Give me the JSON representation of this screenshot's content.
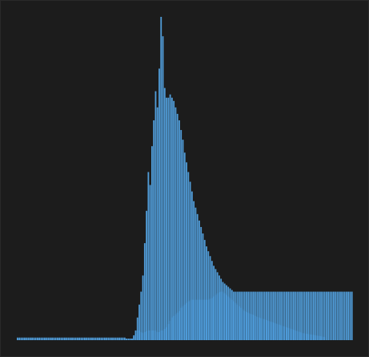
{
  "chart_data": {
    "type": "bar",
    "title": "",
    "xlabel": "",
    "ylabel": "",
    "grid": false,
    "legend": "none",
    "ylim": [
      0,
      100
    ],
    "colors": {
      "background": "#1c1c1c",
      "front": "#55a7e8",
      "back": "#2f6296"
    },
    "series": [
      {
        "values": [
          0.8,
          0.8,
          0.8,
          0.8,
          0.8,
          0.8,
          0.8,
          0.8,
          0.8,
          0.8,
          0.8,
          0.8,
          0.8,
          0.8,
          0.8,
          0.8,
          0.8,
          0.8,
          0.8,
          0.8,
          0.8,
          0.8,
          0.8,
          0.8,
          0.8,
          0.8,
          0.8,
          0.8,
          0.8,
          0.8,
          0.8,
          0.8,
          0.8,
          0.8,
          0.8,
          0.8,
          0.8,
          0.8,
          0.8,
          0.8,
          0.8,
          0.8,
          0.8,
          0.8,
          0.8,
          0.8,
          0.8,
          0.8,
          0.8,
          0.8,
          0.8,
          0.8,
          0.8,
          0.8,
          0.8,
          0.8,
          0.8,
          0.8,
          0.8,
          0.8,
          0.5,
          0.5,
          0.5,
          0.5,
          1.5,
          3,
          7,
          11,
          15,
          20,
          30,
          40,
          52,
          48,
          60,
          68,
          77,
          72,
          84,
          100,
          94,
          78,
          75,
          75,
          76,
          75,
          74,
          72,
          70,
          68,
          65,
          62,
          58,
          55,
          52,
          49,
          46,
          43,
          41,
          39,
          37,
          35,
          33,
          31,
          29,
          27.5,
          26,
          24.5,
          23,
          22,
          21,
          20,
          19,
          18,
          17.5,
          17,
          16.5,
          16,
          15.5,
          15,
          15,
          15,
          15,
          15,
          15,
          15,
          15,
          15,
          15,
          15,
          15,
          15,
          15,
          15,
          15,
          15,
          15,
          15,
          15,
          15,
          15,
          15,
          15,
          15,
          15,
          15,
          15,
          15,
          15,
          15,
          15,
          15,
          15,
          15,
          15,
          15,
          15,
          15,
          15,
          15,
          15,
          15,
          15,
          15,
          15,
          15,
          15,
          15,
          15,
          15,
          15,
          15,
          15,
          15,
          15,
          15,
          15,
          15,
          15,
          15,
          15,
          15,
          15,
          15,
          15
        ]
      },
      {
        "values": [
          0.3,
          0.3,
          0.3,
          0.3,
          0.3,
          0.3,
          0.3,
          0.3,
          0.3,
          0.3,
          0.3,
          0.3,
          0.3,
          0.3,
          0.3,
          0.3,
          0.3,
          0.3,
          0.3,
          0.3,
          0.3,
          0.3,
          0.3,
          0.3,
          0.3,
          0.3,
          0.3,
          0.3,
          0.3,
          0.3,
          0.3,
          0.3,
          0.3,
          0.3,
          0.3,
          0.3,
          0.3,
          0.3,
          0.3,
          0.3,
          0.3,
          0.3,
          0.3,
          0.3,
          0.3,
          0.3,
          0.3,
          0.3,
          0.3,
          0.3,
          0.3,
          0.3,
          0.3,
          0.3,
          0.3,
          0.3,
          0.3,
          0.3,
          0.3,
          0.3,
          0.3,
          0.3,
          0.3,
          0.3,
          1,
          2,
          3,
          3,
          2.5,
          2.2,
          2.5,
          2.8,
          3,
          3,
          3,
          3,
          3,
          2.5,
          2.5,
          3,
          3,
          3.5,
          4,
          5,
          6,
          7,
          7.5,
          8,
          8.5,
          9,
          10,
          10.5,
          11,
          11.5,
          12,
          12.3,
          12.5,
          12.5,
          12.5,
          12.5,
          12.5,
          12.5,
          12.5,
          12.5,
          12.5,
          12.5,
          12.8,
          13,
          13.5,
          14,
          14.5,
          14.8,
          15,
          15,
          14.5,
          14,
          13.5,
          13,
          12.5,
          12,
          11.5,
          11,
          10.5,
          10,
          9.5,
          9,
          8.7,
          8.5,
          8.2,
          8,
          7.8,
          7.5,
          7.2,
          7,
          6.8,
          6.6,
          6.4,
          6.2,
          6,
          5.8,
          5.6,
          5.4,
          5.2,
          5,
          4.8,
          4.6,
          4.4,
          4.2,
          4,
          3.8,
          3.6,
          3.4,
          3.2,
          3,
          2.8,
          2.6,
          2.4,
          2.2,
          2.1,
          2,
          1.9,
          1.8,
          1.7,
          1.6,
          1.5,
          1.4,
          1.3,
          1.2,
          1.1,
          1
        ]
      }
    ]
  }
}
